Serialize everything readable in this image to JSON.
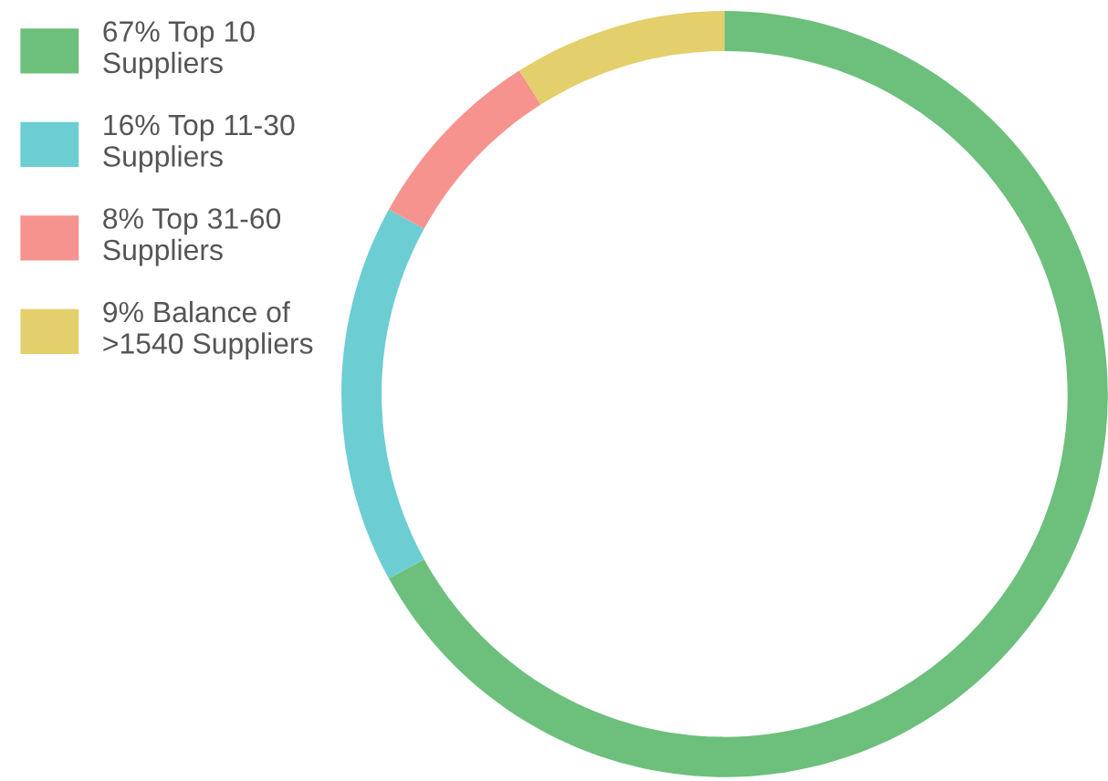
{
  "chart_data": {
    "type": "donut",
    "categories": [
      "67% Top 10\nSuppliers",
      "16% Top 11-30\nSuppliers",
      "8% Top 31-60\nSuppliers",
      "9% Balance of\n>1540 Suppliers"
    ],
    "values": [
      67,
      16,
      8,
      9
    ],
    "colors": [
      "#6dbf7c",
      "#6ccdd3",
      "#f7938f",
      "#e3cf6b"
    ],
    "legend": "top left"
  }
}
